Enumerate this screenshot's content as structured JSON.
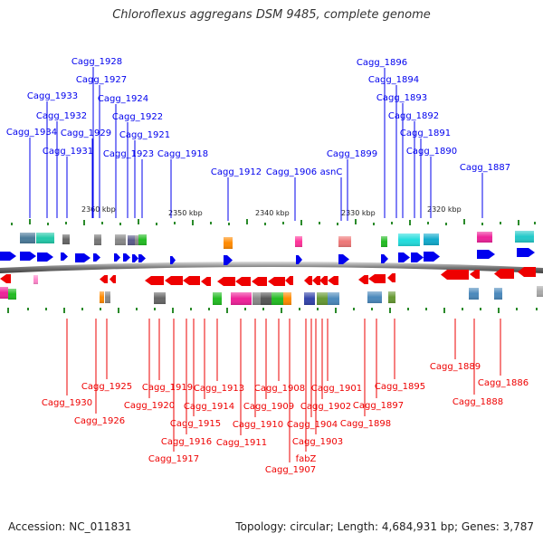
{
  "title": "Chloroflexus aggregans DSM 9485, complete genome",
  "footer": {
    "accession": "Accession: NC_011831",
    "summary": "Topology: circular; Length: 4,684,931 bp; Genes: 3,787"
  },
  "colors": {
    "forward": "#0000ee",
    "reverse": "#ee0000",
    "tick": "#2a8a2a",
    "backbone": "#808080"
  },
  "ruler": [
    {
      "label": "2360 kbp"
    },
    {
      "label": "2350 kbp"
    },
    {
      "label": "2340 kbp"
    },
    {
      "label": "2330 kbp"
    },
    {
      "label": "2320 kbp"
    }
  ],
  "top_genes": [
    {
      "label": "Cagg_1928"
    },
    {
      "label": "Cagg_1927"
    },
    {
      "label": "Cagg_1924"
    },
    {
      "label": "Cagg_1933"
    },
    {
      "label": "Cagg_1932"
    },
    {
      "label": "Cagg_1922"
    },
    {
      "label": "Cagg_1934"
    },
    {
      "label": "Cagg_1929"
    },
    {
      "label": "Cagg_1921"
    },
    {
      "label": "Cagg_1931"
    },
    {
      "label": "Cagg_1923"
    },
    {
      "label": "Cagg_1918"
    },
    {
      "label": "Cagg_1912"
    },
    {
      "label": "Cagg_1906"
    },
    {
      "label": "asnC"
    },
    {
      "label": "Cagg_1899"
    },
    {
      "label": "Cagg_1896"
    },
    {
      "label": "Cagg_1894"
    },
    {
      "label": "Cagg_1893"
    },
    {
      "label": "Cagg_1892"
    },
    {
      "label": "Cagg_1891"
    },
    {
      "label": "Cagg_1890"
    },
    {
      "label": "Cagg_1887"
    }
  ],
  "bottom_genes": [
    {
      "label": "Cagg_1930"
    },
    {
      "label": "Cagg_1925"
    },
    {
      "label": "Cagg_1926"
    },
    {
      "label": "Cagg_1919"
    },
    {
      "label": "Cagg_1920"
    },
    {
      "label": "Cagg_1913"
    },
    {
      "label": "Cagg_1914"
    },
    {
      "label": "Cagg_1915"
    },
    {
      "label": "Cagg_1916"
    },
    {
      "label": "Cagg_1917"
    },
    {
      "label": "Cagg_1911"
    },
    {
      "label": "Cagg_1910"
    },
    {
      "label": "Cagg_1909"
    },
    {
      "label": "Cagg_1908"
    },
    {
      "label": "Cagg_1904"
    },
    {
      "label": "Cagg_1903"
    },
    {
      "label": "fabZ"
    },
    {
      "label": "Cagg_1907"
    },
    {
      "label": "Cagg_1902"
    },
    {
      "label": "Cagg_1901"
    },
    {
      "label": "Cagg_1898"
    },
    {
      "label": "Cagg_1897"
    },
    {
      "label": "Cagg_1895"
    },
    {
      "label": "Cagg_1889"
    },
    {
      "label": "Cagg_1888"
    },
    {
      "label": "Cagg_1886"
    }
  ]
}
